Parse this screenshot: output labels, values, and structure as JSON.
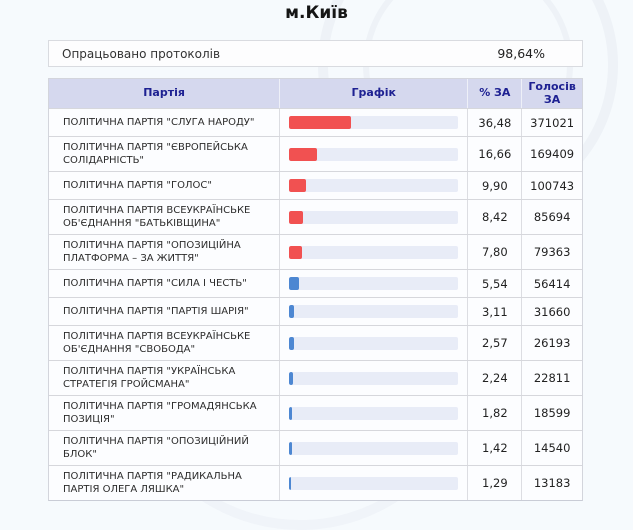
{
  "page": {
    "title": "м.Київ"
  },
  "protocols": {
    "label": "Опрацьовано протоколів",
    "value": "98,64%"
  },
  "colors": {
    "header_bg": "#d5d8ee",
    "header_text": "#1e2192",
    "bar_red": "#f15151",
    "bar_blue": "#4d87d2",
    "bar_track": "#e8ecf7"
  },
  "table": {
    "headers": {
      "party": "Партія",
      "graph": "Графік",
      "pct": "% ЗА",
      "votes": "Голосів ЗА"
    },
    "rows": [
      {
        "party": "ПОЛІТИЧНА ПАРТІЯ \"СЛУГА НАРОДУ\"",
        "pct": "36,48",
        "pct_value": 36.48,
        "votes": "371021",
        "color": "red"
      },
      {
        "party": "ПОЛІТИЧНА ПАРТІЯ \"ЄВРОПЕЙСЬКА СОЛІДАРНІСТЬ\"",
        "pct": "16,66",
        "pct_value": 16.66,
        "votes": "169409",
        "color": "red"
      },
      {
        "party": "ПОЛІТИЧНА ПАРТІЯ \"ГОЛОС\"",
        "pct": "9,90",
        "pct_value": 9.9,
        "votes": "100743",
        "color": "red"
      },
      {
        "party": "ПОЛІТИЧНА ПАРТІЯ ВСЕУКРАЇНСЬКЕ ОБ'ЄДНАННЯ \"БАТЬКІВЩИНА\"",
        "pct": "8,42",
        "pct_value": 8.42,
        "votes": "85694",
        "color": "red"
      },
      {
        "party": "ПОЛІТИЧНА ПАРТІЯ \"ОПОЗИЦІЙНА ПЛАТФОРМА – ЗА ЖИТТЯ\"",
        "pct": "7,80",
        "pct_value": 7.8,
        "votes": "79363",
        "color": "red"
      },
      {
        "party": "ПОЛІТИЧНА ПАРТІЯ \"СИЛА І ЧЕСТЬ\"",
        "pct": "5,54",
        "pct_value": 5.54,
        "votes": "56414",
        "color": "blue"
      },
      {
        "party": "ПОЛІТИЧНА ПАРТІЯ \"ПАРТІЯ ШАРІЯ\"",
        "pct": "3,11",
        "pct_value": 3.11,
        "votes": "31660",
        "color": "blue"
      },
      {
        "party": "ПОЛІТИЧНА ПАРТІЯ ВСЕУКРАЇНСЬКЕ ОБ'ЄДНАННЯ \"СВОБОДА\"",
        "pct": "2,57",
        "pct_value": 2.57,
        "votes": "26193",
        "color": "blue"
      },
      {
        "party": "ПОЛІТИЧНА ПАРТІЯ \"УКРАЇНСЬКА СТРАТЕГІЯ ГРОЙСМАНА\"",
        "pct": "2,24",
        "pct_value": 2.24,
        "votes": "22811",
        "color": "blue"
      },
      {
        "party": "ПОЛІТИЧНА ПАРТІЯ \"ГРОМАДЯНСЬКА ПОЗИЦІЯ\"",
        "pct": "1,82",
        "pct_value": 1.82,
        "votes": "18599",
        "color": "blue"
      },
      {
        "party": "ПОЛІТИЧНА ПАРТІЯ \"ОПОЗИЦІЙНИЙ БЛОК\"",
        "pct": "1,42",
        "pct_value": 1.42,
        "votes": "14540",
        "color": "blue"
      },
      {
        "party": "ПОЛІТИЧНА ПАРТІЯ \"РАДИКАЛЬНА ПАРТІЯ ОЛЕГА ЛЯШКА\"",
        "pct": "1,29",
        "pct_value": 1.29,
        "votes": "13183",
        "color": "blue"
      }
    ]
  },
  "chart_data": {
    "type": "bar",
    "title": "м.Київ",
    "categories": [
      "ПОЛІТИЧНА ПАРТІЯ \"СЛУГА НАРОДУ\"",
      "ПОЛІТИЧНА ПАРТІЯ \"ЄВРОПЕЙСЬКА СОЛІДАРНІСТЬ\"",
      "ПОЛІТИЧНА ПАРТІЯ \"ГОЛОС\"",
      "ПОЛІТИЧНА ПАРТІЯ ВСЕУКРАЇНСЬКЕ ОБ'ЄДНАННЯ \"БАТЬКІВЩИНА\"",
      "ПОЛІТИЧНА ПАРТІЯ \"ОПОЗИЦІЙНА ПЛАТФОРМА – ЗА ЖИТТЯ\"",
      "ПОЛІТИЧНА ПАРТІЯ \"СИЛА І ЧЕСТЬ\"",
      "ПОЛІТИЧНА ПАРТІЯ \"ПАРТІЯ ШАРІЯ\"",
      "ПОЛІТИЧНА ПАРТІЯ ВСЕУКРАЇНСЬКЕ ОБ'ЄДНАННЯ \"СВОБОДА\"",
      "ПОЛІТИЧНА ПАРТІЯ \"УКРАЇНСЬКА СТРАТЕГІЯ ГРОЙСМАНА\"",
      "ПОЛІТИЧНА ПАРТІЯ \"ГРОМАДЯНСЬКА ПОЗИЦІЯ\"",
      "ПОЛІТИЧНА ПАРТІЯ \"ОПОЗИЦІЙНИЙ БЛОК\"",
      "ПОЛІТИЧНА ПАРТІЯ \"РАДИКАЛЬНА ПАРТІЯ ОЛЕГА ЛЯШКА\""
    ],
    "series": [
      {
        "name": "% ЗА",
        "values": [
          36.48,
          16.66,
          9.9,
          8.42,
          7.8,
          5.54,
          3.11,
          2.57,
          2.24,
          1.82,
          1.42,
          1.29
        ]
      },
      {
        "name": "Голосів ЗА",
        "values": [
          371021,
          169409,
          100743,
          85694,
          79363,
          56414,
          31660,
          26193,
          22811,
          18599,
          14540,
          13183
        ]
      }
    ],
    "xlim": [
      0,
      100
    ],
    "orientation": "horizontal"
  }
}
